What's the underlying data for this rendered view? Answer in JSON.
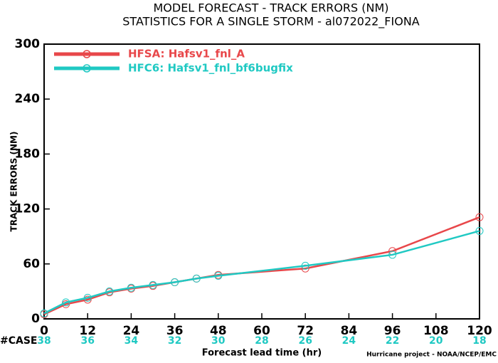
{
  "chart_data": {
    "type": "line",
    "title": "MODEL FORECAST - TRACK ERRORS (NM)",
    "subtitle": "STATISTICS FOR A SINGLE STORM - al072022_FIONA",
    "x_label": "Forecast lead time (hr)",
    "y_label": "TRACK ERRORS (NM)",
    "credit": "Hurricane project - NOAA/NCEP/EMC",
    "case_label": "#CASE",
    "case_x": [
      0,
      12,
      24,
      36,
      48,
      60,
      72,
      84,
      96,
      108,
      120
    ],
    "cases": [
      38,
      36,
      34,
      32,
      30,
      28,
      26,
      24,
      22,
      20,
      18
    ],
    "case_color": "#20c9c3",
    "x": [
      0,
      6,
      12,
      18,
      24,
      30,
      36,
      42,
      48,
      72,
      96,
      120
    ],
    "series": [
      {
        "name": "HFSA: Hafsv1_fnl_A",
        "color": "#e8474a",
        "values": [
          5,
          16,
          21,
          29,
          33,
          36,
          40,
          44,
          48,
          55,
          74,
          111
        ]
      },
      {
        "name": "HFC6: Hafsv1_fnl_bf6bugfix",
        "color": "#20c9c3",
        "values": [
          6,
          18,
          23,
          30,
          34,
          37,
          40,
          44,
          47,
          58,
          70,
          96
        ]
      }
    ],
    "xlim": [
      0,
      120
    ],
    "xticks": [
      0,
      12,
      24,
      36,
      48,
      60,
      72,
      84,
      96,
      108,
      120
    ],
    "ylim": [
      0,
      300
    ],
    "yticks": [
      0,
      60,
      120,
      180,
      240,
      300
    ],
    "legend": "upper left"
  }
}
